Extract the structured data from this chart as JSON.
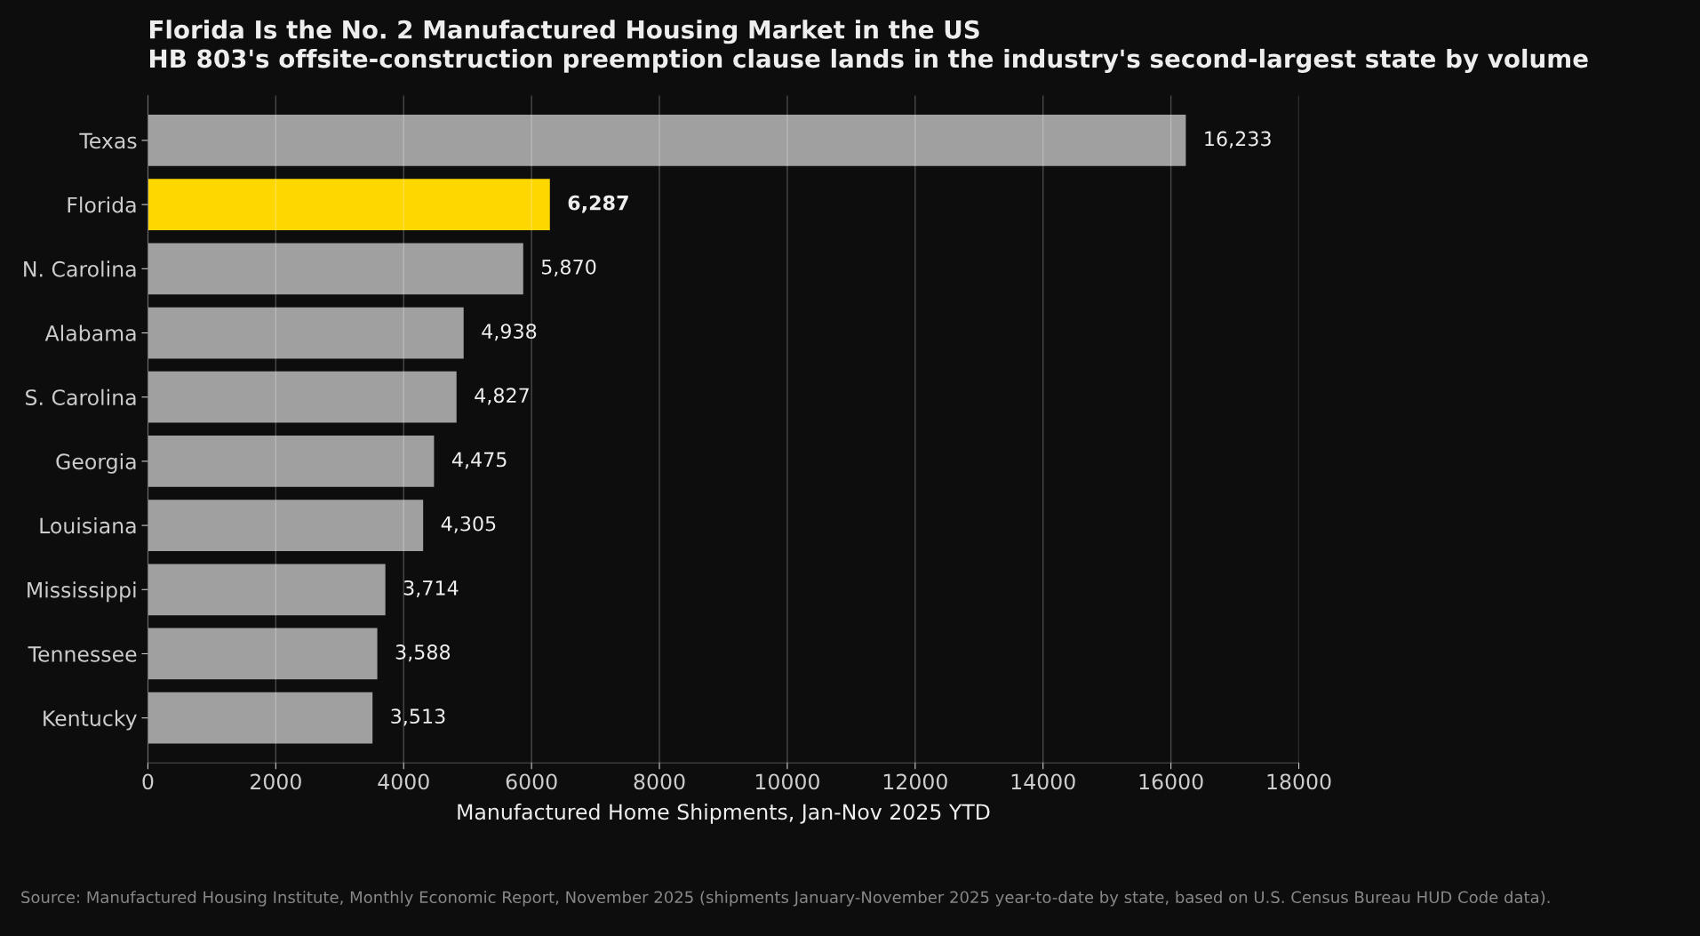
{
  "chart_data": {
    "type": "bar",
    "orientation": "horizontal",
    "title": "Florida Is the No. 2 Manufactured Housing Market in the US",
    "subtitle": "HB 803's offsite-construction preemption clause lands in the industry's second-largest state by volume",
    "xlabel": "Manufactured Home Shipments, Jan-Nov 2025 YTD",
    "categories": [
      "Texas",
      "Florida",
      "N. Carolina",
      "Alabama",
      "S. Carolina",
      "Georgia",
      "Louisiana",
      "Mississippi",
      "Tennessee",
      "Kentucky"
    ],
    "values": [
      16233,
      6287,
      5870,
      4938,
      4827,
      4475,
      4305,
      3714,
      3588,
      3513
    ],
    "value_labels": [
      "16,233",
      "6,287",
      "5,870",
      "4,938",
      "4,827",
      "4,475",
      "4,305",
      "3,714",
      "3,588",
      "3,513"
    ],
    "colors": [
      "#a0a0a0",
      "#ffd700",
      "#a0a0a0",
      "#a0a0a0",
      "#a0a0a0",
      "#a0a0a0",
      "#a0a0a0",
      "#a0a0a0",
      "#a0a0a0",
      "#a0a0a0"
    ],
    "xlim": [
      0,
      18000
    ],
    "xticks": [
      0,
      2000,
      4000,
      6000,
      8000,
      10000,
      12000,
      14000,
      16000,
      18000
    ],
    "grid": "x",
    "annotations": [
      "Source: Manufactured Housing Institute, Monthly Economic Report, November 2025 (shipments January-November 2025 year-to-date by state, based on U.S. Census Bureau HUD Code data)."
    ]
  }
}
